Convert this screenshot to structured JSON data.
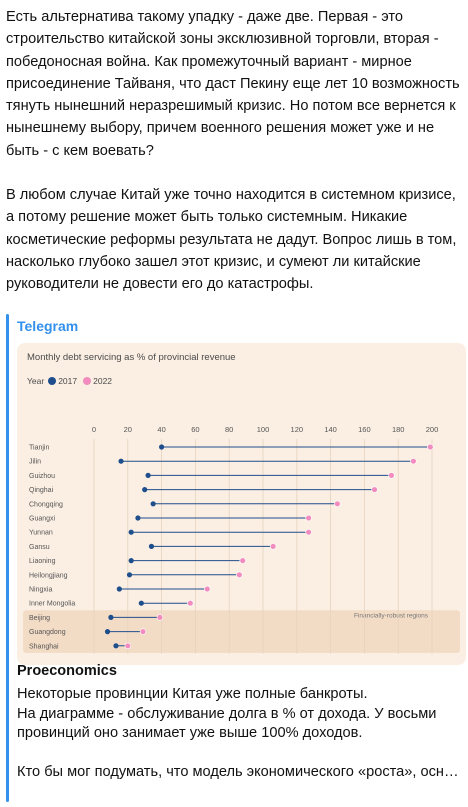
{
  "post": {
    "paragraphs": [
      "Есть альтернатива такому упадку - даже две. Первая - это строительство китайской зоны эксклюзивной торговли, вторая - победоносная война. Как промежуточный вариант - мирное присоединение Тайваня, что даст Пекину еще лет 10 возможность тянуть нынешний неразрешимый кризис. Но потом все вернется к нынешнему выбору, причем военного решения может уже и не быть - с кем воевать?",
      "В любом случае Китай уже точно находится в системном кризисе, а потому решение может быть только системным. Никакие косметические реформы результата не дадут. Вопрос лишь в том, насколько глубоко зашел этот кризис, и сумеют ли китайские руководители не довести его до катастрофы."
    ]
  },
  "preview": {
    "site_name": "Telegram",
    "title": "Proeconomics",
    "description": [
      "Некоторые провинции Китая уже полные банкроты.",
      "На диаграмме - обслуживание долга в % от дохода. У восьми провинций оно занимает уже выше 100% доходов."
    ],
    "description_tail": "Кто бы мог подумать, что модель экономического «роста», основанная на долговом финансировании строительства…",
    "accent_color": "#3390ec"
  },
  "chart_data": {
    "type": "dumbbell",
    "title": "Monthly debt servicing as % of provincial revenue",
    "legend_title": "Year",
    "series": [
      {
        "name": "2017",
        "color": "#1f4e8c"
      },
      {
        "name": "2022",
        "color": "#f28cbf"
      }
    ],
    "xlim": [
      0,
      200
    ],
    "xticks": [
      0,
      20,
      40,
      60,
      80,
      100,
      120,
      140,
      160,
      180,
      200
    ],
    "categories": [
      "Tianjin",
      "Jilin",
      "Guizhou",
      "Qinghai",
      "Chongqing",
      "Guangxi",
      "Yunnan",
      "Gansu",
      "Liaoning",
      "Heilongjiang",
      "Ningxia",
      "Inner Mongolia",
      "Beijing",
      "Guangdong",
      "Shanghai"
    ],
    "values_2017": [
      40,
      16,
      32,
      30,
      35,
      26,
      22,
      34,
      22,
      21,
      15,
      28,
      10,
      8,
      13
    ],
    "values_2022": [
      199,
      189,
      176,
      166,
      144,
      127,
      127,
      106,
      88,
      86,
      67,
      57,
      39,
      29,
      20
    ],
    "annotation": "Financially-robust regions",
    "highlighted_rows": [
      "Beijing",
      "Guangdong",
      "Shanghai"
    ],
    "grid": "vertical"
  }
}
